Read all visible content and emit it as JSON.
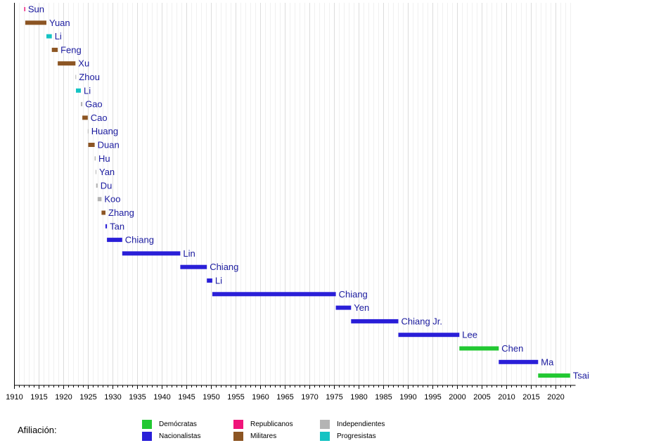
{
  "chart_data": {
    "type": "timeline",
    "title": "",
    "xlabel": "",
    "ylabel": "",
    "xlim": [
      1910,
      2024
    ],
    "grid": true,
    "x_ticks": [
      1910,
      1915,
      1920,
      1925,
      1930,
      1935,
      1940,
      1945,
      1950,
      1955,
      1960,
      1965,
      1970,
      1975,
      1980,
      1985,
      1990,
      1995,
      2000,
      2005,
      2010,
      2015,
      2020
    ],
    "colors": {
      "Demócratas": "#22c832",
      "Nacionalistas": "#2a1fd8",
      "Republicanos": "#f0147a",
      "Militares": "#8c5523",
      "Independientes": "#b4b4b4",
      "Progresistas": "#14c3c3"
    },
    "bars": [
      {
        "label": "Sun",
        "start": 1912.0,
        "end": 1912.2,
        "affiliation": "Republicanos"
      },
      {
        "label": "Yuan",
        "start": 1912.2,
        "end": 1916.5,
        "affiliation": "Militares"
      },
      {
        "label": "Li",
        "start": 1916.5,
        "end": 1917.6,
        "affiliation": "Progresistas"
      },
      {
        "label": "Feng",
        "start": 1917.6,
        "end": 1918.8,
        "affiliation": "Militares"
      },
      {
        "label": "Xu",
        "start": 1918.8,
        "end": 1922.4,
        "affiliation": "Militares"
      },
      {
        "label": "Zhou",
        "start": 1922.4,
        "end": 1922.5,
        "affiliation": "Independientes"
      },
      {
        "label": "Li",
        "start": 1922.5,
        "end": 1923.5,
        "affiliation": "Progresistas"
      },
      {
        "label": "Gao",
        "start": 1923.5,
        "end": 1923.8,
        "affiliation": "Independientes"
      },
      {
        "label": "Cao",
        "start": 1923.8,
        "end": 1924.9,
        "affiliation": "Militares"
      },
      {
        "label": "Huang",
        "start": 1924.9,
        "end": 1925.0,
        "affiliation": "Independientes"
      },
      {
        "label": "Duan",
        "start": 1925.0,
        "end": 1926.3,
        "affiliation": "Militares"
      },
      {
        "label": "Hu",
        "start": 1926.3,
        "end": 1926.5,
        "affiliation": "Independientes"
      },
      {
        "label": "Yan",
        "start": 1926.5,
        "end": 1926.6,
        "affiliation": "Independientes"
      },
      {
        "label": "Du",
        "start": 1926.6,
        "end": 1926.9,
        "affiliation": "Independientes"
      },
      {
        "label": "Koo",
        "start": 1926.9,
        "end": 1927.7,
        "affiliation": "Independientes"
      },
      {
        "label": "Zhang",
        "start": 1927.7,
        "end": 1928.5,
        "affiliation": "Militares"
      },
      {
        "label": "Tan",
        "start": 1928.5,
        "end": 1928.8,
        "affiliation": "Nacionalistas"
      },
      {
        "label": "Chiang",
        "start": 1928.8,
        "end": 1931.9,
        "affiliation": "Nacionalistas"
      },
      {
        "label": "Lin",
        "start": 1931.9,
        "end": 1943.7,
        "affiliation": "Nacionalistas"
      },
      {
        "label": "Chiang",
        "start": 1943.7,
        "end": 1949.1,
        "affiliation": "Nacionalistas"
      },
      {
        "label": "Li",
        "start": 1949.1,
        "end": 1950.2,
        "affiliation": "Nacionalistas"
      },
      {
        "label": "Chiang",
        "start": 1950.2,
        "end": 1975.3,
        "affiliation": "Nacionalistas"
      },
      {
        "label": "Yen",
        "start": 1975.3,
        "end": 1978.4,
        "affiliation": "Nacionalistas"
      },
      {
        "label": "Chiang Jr.",
        "start": 1978.4,
        "end": 1988.0,
        "affiliation": "Nacionalistas"
      },
      {
        "label": "Lee",
        "start": 1988.0,
        "end": 2000.4,
        "affiliation": "Nacionalistas"
      },
      {
        "label": "Chen",
        "start": 2000.4,
        "end": 2008.4,
        "affiliation": "Demócratas"
      },
      {
        "label": "Ma",
        "start": 2008.4,
        "end": 2016.4,
        "affiliation": "Nacionalistas"
      },
      {
        "label": "Tsai",
        "start": 2016.4,
        "end": 2022.9,
        "affiliation": "Demócratas"
      }
    ],
    "legend": {
      "title": "Afiliación:",
      "position": "bottom",
      "entries": [
        {
          "label": "Demócratas",
          "color": "#22c832"
        },
        {
          "label": "Nacionalistas",
          "color": "#2a1fd8"
        },
        {
          "label": "Republicanos",
          "color": "#f0147a"
        },
        {
          "label": "Militares",
          "color": "#8c5523"
        },
        {
          "label": "Independientes",
          "color": "#b4b4b4"
        },
        {
          "label": "Progresistas",
          "color": "#14c3c3"
        }
      ]
    }
  }
}
